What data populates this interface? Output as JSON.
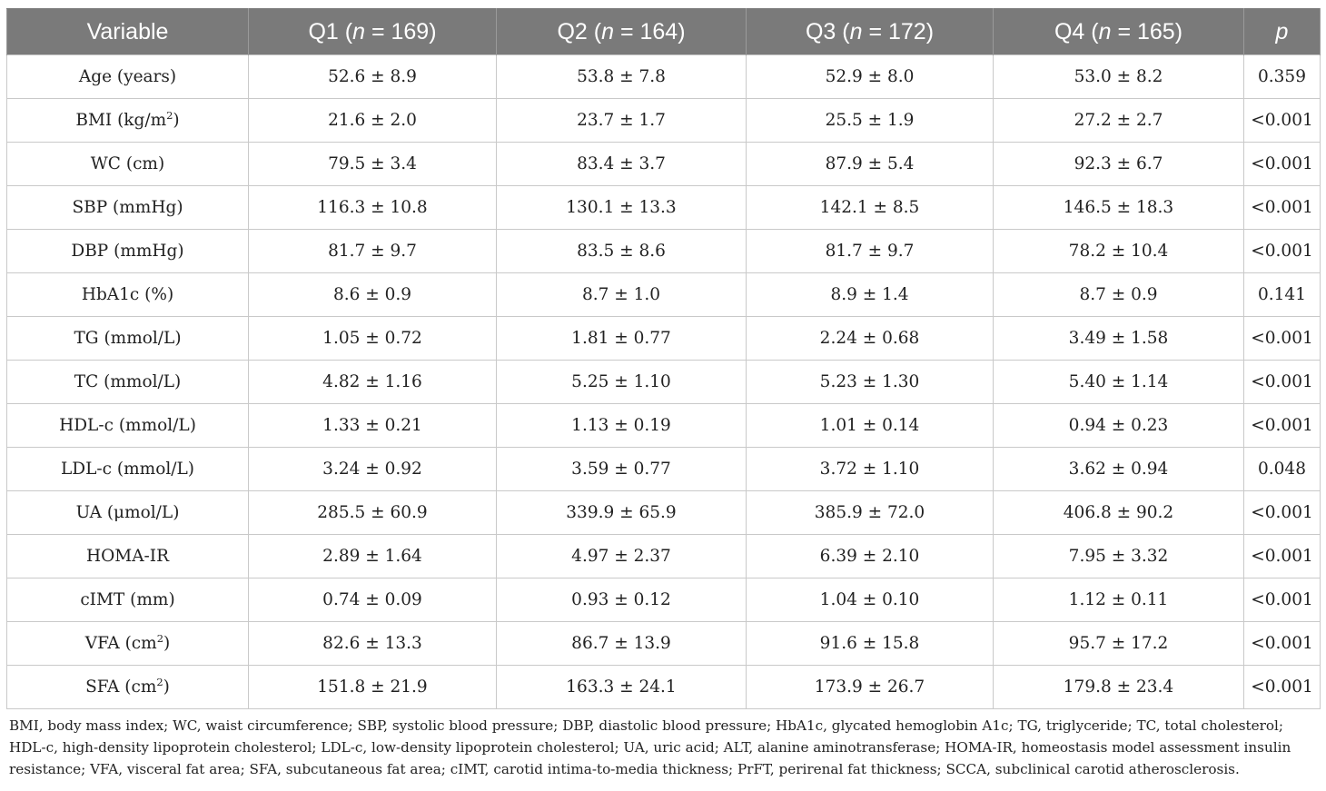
{
  "table": {
    "header": {
      "variable": "Variable",
      "groups": [
        {
          "label": "Q1 (",
          "n_symbol": "n",
          "count": " = 169)"
        },
        {
          "label": "Q2 (",
          "n_symbol": "n",
          "count": " = 164)"
        },
        {
          "label": "Q3 (",
          "n_symbol": "n",
          "count": " = 172)"
        },
        {
          "label": "Q4 (",
          "n_symbol": "n",
          "count": " = 165)"
        }
      ],
      "p": "p"
    },
    "rows": [
      {
        "label": "Age (years)",
        "sup": "",
        "suffix": "",
        "values": [
          "52.6 ± 8.9",
          "53.8 ± 7.8",
          "52.9 ± 8.0",
          "53.0 ± 8.2"
        ],
        "p": "0.359"
      },
      {
        "label": "BMI (kg/m",
        "sup": "2",
        "suffix": ")",
        "values": [
          "21.6 ± 2.0",
          "23.7 ± 1.7",
          "25.5 ± 1.9",
          "27.2 ± 2.7"
        ],
        "p": "<0.001"
      },
      {
        "label": "WC (cm)",
        "sup": "",
        "suffix": "",
        "values": [
          "79.5 ± 3.4",
          "83.4 ± 3.7",
          "87.9 ± 5.4",
          "92.3 ± 6.7"
        ],
        "p": "<0.001"
      },
      {
        "label": "SBP (mmHg)",
        "sup": "",
        "suffix": "",
        "values": [
          "116.3 ± 10.8",
          "130.1 ± 13.3",
          "142.1 ± 8.5",
          "146.5 ± 18.3"
        ],
        "p": "<0.001"
      },
      {
        "label": "DBP (mmHg)",
        "sup": "",
        "suffix": "",
        "values": [
          "81.7 ± 9.7",
          "83.5 ± 8.6",
          "81.7 ± 9.7",
          "78.2 ± 10.4"
        ],
        "p": "<0.001"
      },
      {
        "label": "HbA1c (%)",
        "sup": "",
        "suffix": "",
        "values": [
          "8.6 ± 0.9",
          "8.7 ± 1.0",
          "8.9 ± 1.4",
          "8.7 ± 0.9"
        ],
        "p": "0.141"
      },
      {
        "label": "TG (mmol/L)",
        "sup": "",
        "suffix": "",
        "values": [
          "1.05 ± 0.72",
          "1.81 ± 0.77",
          "2.24 ± 0.68",
          "3.49 ± 1.58"
        ],
        "p": "<0.001"
      },
      {
        "label": "TC (mmol/L)",
        "sup": "",
        "suffix": "",
        "values": [
          "4.82 ± 1.16",
          "5.25 ± 1.10",
          "5.23 ± 1.30",
          "5.40 ± 1.14"
        ],
        "p": "<0.001"
      },
      {
        "label": "HDL-c (mmol/L)",
        "sup": "",
        "suffix": "",
        "values": [
          "1.33 ± 0.21",
          "1.13 ± 0.19",
          "1.01 ± 0.14",
          "0.94 ± 0.23"
        ],
        "p": "<0.001"
      },
      {
        "label": "LDL-c (mmol/L)",
        "sup": "",
        "suffix": "",
        "values": [
          "3.24 ± 0.92",
          "3.59 ± 0.77",
          "3.72 ± 1.10",
          "3.62 ± 0.94"
        ],
        "p": "0.048"
      },
      {
        "label": "UA (μmol/L)",
        "sup": "",
        "suffix": "",
        "values": [
          "285.5 ± 60.9",
          "339.9 ± 65.9",
          "385.9 ± 72.0",
          "406.8 ± 90.2"
        ],
        "p": "<0.001"
      },
      {
        "label": "HOMA-IR",
        "sup": "",
        "suffix": "",
        "values": [
          "2.89 ± 1.64",
          "4.97 ± 2.37",
          "6.39 ± 2.10",
          "7.95 ± 3.32"
        ],
        "p": "<0.001"
      },
      {
        "label": "cIMT (mm)",
        "sup": "",
        "suffix": "",
        "values": [
          "0.74 ± 0.09",
          "0.93 ± 0.12",
          "1.04 ± 0.10",
          "1.12 ± 0.11"
        ],
        "p": "<0.001"
      },
      {
        "label": "VFA (cm",
        "sup": "2",
        "suffix": ")",
        "values": [
          "82.6 ± 13.3",
          "86.7 ± 13.9",
          "91.6 ± 15.8",
          "95.7 ± 17.2"
        ],
        "p": "<0.001"
      },
      {
        "label": "SFA (cm",
        "sup": "2",
        "suffix": ")",
        "values": [
          "151.8 ± 21.9",
          "163.3 ± 24.1",
          "173.9 ± 26.7",
          "179.8 ± 23.4"
        ],
        "p": "<0.001"
      }
    ]
  },
  "footnote": "BMI, body mass index; WC, waist circumference; SBP, systolic blood pressure; DBP, diastolic blood pressure; HbA1c, glycated hemoglobin A1c; TG, triglyceride; TC, total cholesterol; HDL-c, high-density lipoprotein cholesterol; LDL-c, low-density lipoprotein cholesterol; UA, uric acid; ALT, alanine aminotransferase; HOMA-IR, homeostasis model assessment insulin resistance; VFA, visceral fat area; SFA, subcutaneous fat area; cIMT, carotid intima-to-media thickness; PrFT, perirenal fat thickness; SCCA, subclinical carotid atherosclerosis."
}
